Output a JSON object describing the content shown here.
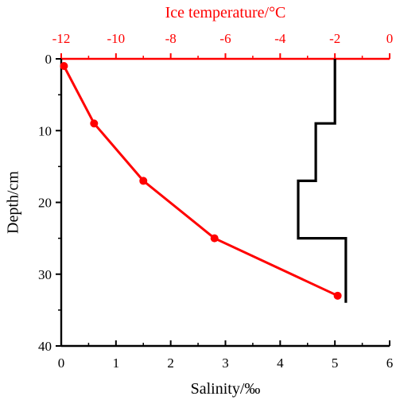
{
  "chart_data": {
    "type": "line",
    "top_axis": {
      "label": "Ice temperature/°C",
      "range": [
        -12,
        0
      ],
      "ticks": [
        -12,
        -10,
        -8,
        -6,
        -4,
        -2,
        0
      ],
      "tick_labels": [
        "-12",
        "-10",
        "-8",
        "-6",
        "-4",
        "-2",
        "0"
      ],
      "color": "#ff0000"
    },
    "bottom_axis": {
      "label": "Salinity/‰",
      "range": [
        0,
        6
      ],
      "ticks": [
        0,
        1,
        2,
        3,
        4,
        5,
        6
      ],
      "tick_labels": [
        "0",
        "1",
        "2",
        "3",
        "4",
        "5",
        "6"
      ],
      "color": "#000000"
    },
    "y_axis": {
      "label": "Depth/cm",
      "range": [
        0,
        40
      ],
      "inverted": true,
      "ticks": [
        0,
        10,
        20,
        30,
        40
      ],
      "tick_labels": [
        "0",
        "10",
        "20",
        "30",
        "40"
      ]
    },
    "series": [
      {
        "kind": "temperature",
        "x_axis": "top",
        "color": "#ff0000",
        "markers": true,
        "points": [
          {
            "temperature": -11.9,
            "depth": 1
          },
          {
            "temperature": -10.8,
            "depth": 9
          },
          {
            "temperature": -9.0,
            "depth": 17
          },
          {
            "temperature": -6.4,
            "depth": 25
          },
          {
            "temperature": -1.9,
            "depth": 33
          }
        ]
      },
      {
        "kind": "salinity",
        "x_axis": "bottom",
        "color": "#000000",
        "markers": false,
        "step": true,
        "points": [
          {
            "salinity": 5.0,
            "depth": 0
          },
          {
            "salinity": 5.0,
            "depth": 9
          },
          {
            "salinity": 4.65,
            "depth": 9
          },
          {
            "salinity": 4.65,
            "depth": 17
          },
          {
            "salinity": 4.33,
            "depth": 17
          },
          {
            "salinity": 4.33,
            "depth": 25
          },
          {
            "salinity": 5.2,
            "depth": 25
          },
          {
            "salinity": 5.2,
            "depth": 34
          }
        ]
      }
    ],
    "grid": false,
    "legend": "none"
  }
}
